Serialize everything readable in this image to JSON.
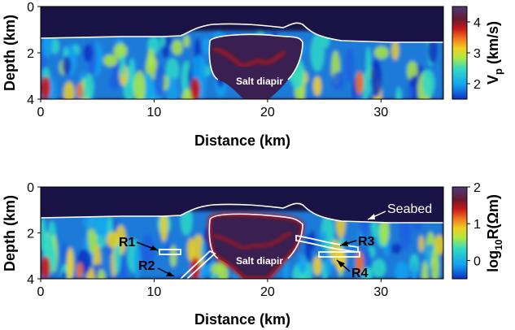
{
  "panels": [
    {
      "y_ticks": [
        "0",
        "2",
        "4"
      ],
      "x_ticks": [
        "0",
        "10",
        "20",
        "30"
      ],
      "ylabel": "Depth (km)",
      "xlabel": "Distance (km)",
      "colorbar": {
        "ticks": [
          "2",
          "3",
          "4"
        ],
        "label": "V_p (km/s)",
        "range": [
          1.5,
          4.5
        ]
      },
      "annotations": [
        "Salt diapir"
      ]
    },
    {
      "y_ticks": [
        "0",
        "2",
        "4"
      ],
      "x_ticks": [
        "0",
        "10",
        "20",
        "30"
      ],
      "ylabel": "Depth (km)",
      "xlabel": "Distance (km)",
      "colorbar": {
        "ticks": [
          "0",
          "1",
          "2"
        ],
        "label": "log10R(Ωm)",
        "range": [
          -0.5,
          2
        ]
      },
      "annotations": [
        "Salt diapir",
        "Seabed"
      ],
      "reflectors": [
        "R1",
        "R2",
        "R3",
        "R4"
      ]
    }
  ],
  "colors": {
    "water": "#1a1446",
    "salt_interior": "#3a2050",
    "seabed_line": "#ffffff",
    "colormap": [
      "#2a1a5e",
      "#1f3fd0",
      "#10a8f0",
      "#38d8c0",
      "#c8e838",
      "#f0a020",
      "#c81818",
      "#6a1a30",
      "#4a2a68"
    ]
  }
}
